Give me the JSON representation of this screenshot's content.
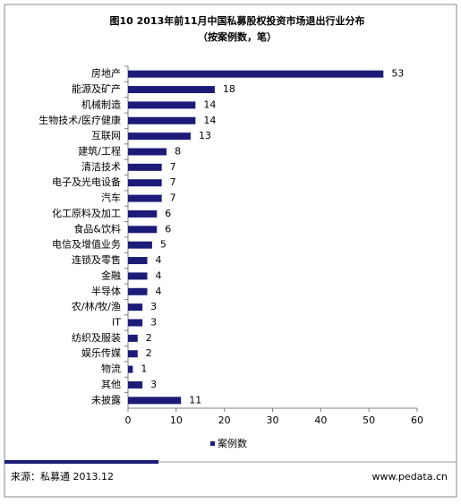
{
  "chart_data": {
    "type": "bar",
    "orientation": "horizontal",
    "title": "图10 2013年前11月中国私募股权投资市场退出行业分布",
    "subtitle": "（按案例数，笔）",
    "categories": [
      "房地产",
      "能源及矿产",
      "机械制造",
      "生物技术/医疗健康",
      "互联网",
      "建筑/工程",
      "清洁技术",
      "电子及光电设备",
      "汽车",
      "化工原料及加工",
      "食品&饮料",
      "电信及增值业务",
      "连锁及零售",
      "金融",
      "半导体",
      "农/林/牧/渔",
      "IT",
      "纺织及服装",
      "娱乐传媒",
      "物流",
      "其他",
      "未披露"
    ],
    "series": [
      {
        "name": "案例数",
        "color": "#1c1c78",
        "values": [
          53,
          18,
          14,
          14,
          13,
          8,
          7,
          7,
          7,
          6,
          6,
          5,
          4,
          4,
          4,
          3,
          3,
          2,
          2,
          1,
          3,
          11
        ]
      }
    ],
    "xlim": [
      0,
      60
    ],
    "xticks": [
      0,
      10,
      20,
      30,
      40,
      50,
      60
    ],
    "source": "来源：私募通  2013.12",
    "website": "www.pedata.cn"
  }
}
